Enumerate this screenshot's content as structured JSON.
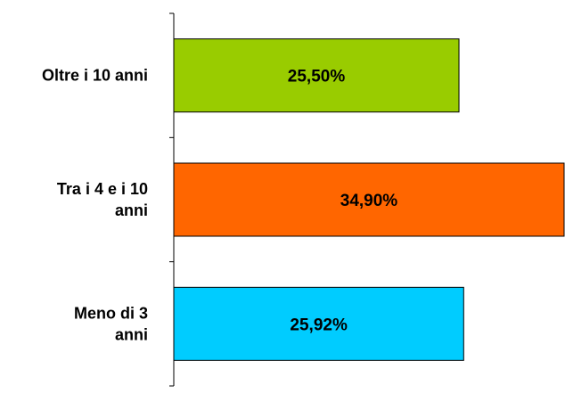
{
  "chart_data": {
    "type": "bar",
    "orientation": "horizontal",
    "categories": [
      "Oltre i 10 anni",
      "Tra i 4 e i 10 anni",
      "Meno di 3 anni"
    ],
    "category_label_lines": [
      [
        "Oltre i 10 anni"
      ],
      [
        "Tra i 4 e i 10",
        "anni"
      ],
      [
        "Meno di 3",
        "anni"
      ]
    ],
    "values": [
      25.5,
      34.9,
      25.92
    ],
    "value_labels": [
      "25,50%",
      "34,90%",
      "25,92%"
    ],
    "colors": [
      "#99cc00",
      "#ff6600",
      "#00ccff"
    ],
    "title": "",
    "xlabel": "",
    "ylabel": "",
    "grid": false,
    "legend": "none"
  }
}
